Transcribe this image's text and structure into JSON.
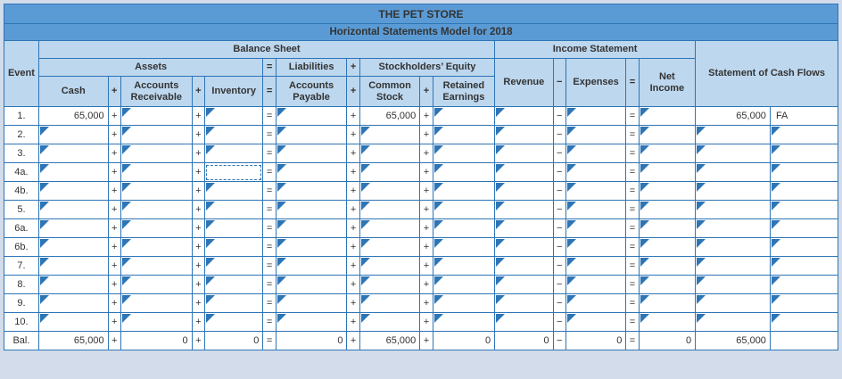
{
  "titles": {
    "company": "THE PET STORE",
    "model": "Horizontal Statements Model for 2018"
  },
  "header": {
    "event": "Event",
    "balance_sheet": "Balance Sheet",
    "income_statement": "Income Statement",
    "cash_flows": "Statement of Cash Flows",
    "assets": "Assets",
    "liabilities": "Liabilities",
    "stockholders_equity": "Stockholders’ Equity",
    "cash": "Cash",
    "accounts_receivable": "Accounts Receivable",
    "inventory": "Inventory",
    "accounts_payable": "Accounts Payable",
    "common_stock": "Common Stock",
    "retained_earnings": "Retained Earnings",
    "revenue": "Revenue",
    "expenses": "Expenses",
    "net_income": "Net Income",
    "op_plus": "+",
    "op_minus": "−",
    "op_equals": "="
  },
  "grid": {
    "columns": [
      {
        "type": "value",
        "key": "cash",
        "name": "cash"
      },
      {
        "type": "op",
        "label": "+"
      },
      {
        "type": "value",
        "key": "ar",
        "name": "accounts-receivable"
      },
      {
        "type": "op",
        "label": "+"
      },
      {
        "type": "value",
        "key": "inv",
        "name": "inventory"
      },
      {
        "type": "op",
        "label": "="
      },
      {
        "type": "value",
        "key": "ap",
        "name": "accounts-payable"
      },
      {
        "type": "op",
        "label": "+"
      },
      {
        "type": "value",
        "key": "cs",
        "name": "common-stock"
      },
      {
        "type": "op",
        "label": "+"
      },
      {
        "type": "value",
        "key": "re",
        "name": "retained-earnings"
      },
      {
        "type": "value",
        "key": "rev",
        "name": "revenue"
      },
      {
        "type": "op",
        "label": "−"
      },
      {
        "type": "value",
        "key": "exp",
        "name": "expenses"
      },
      {
        "type": "op",
        "label": "="
      },
      {
        "type": "value",
        "key": "ni",
        "name": "net-income"
      },
      {
        "type": "value",
        "key": "cf",
        "name": "cash-flow-amount"
      },
      {
        "type": "value",
        "key": "cf_code",
        "name": "cash-flow-code"
      }
    ],
    "rows": [
      {
        "event": "1.",
        "is_bal": false,
        "values": {
          "cash": "65,000",
          "cs": "65,000",
          "cf": "65,000",
          "cf_code": "FA"
        }
      },
      {
        "event": "2.",
        "is_bal": false,
        "values": {}
      },
      {
        "event": "3.",
        "is_bal": false,
        "values": {}
      },
      {
        "event": "4a.",
        "is_bal": false,
        "values": {}
      },
      {
        "event": "4b.",
        "is_bal": false,
        "values": {}
      },
      {
        "event": "5.",
        "is_bal": false,
        "values": {}
      },
      {
        "event": "6a.",
        "is_bal": false,
        "values": {}
      },
      {
        "event": "6b.",
        "is_bal": false,
        "values": {}
      },
      {
        "event": "7.",
        "is_bal": false,
        "values": {}
      },
      {
        "event": "8.",
        "is_bal": false,
        "values": {}
      },
      {
        "event": "9.",
        "is_bal": false,
        "values": {}
      },
      {
        "event": "10.",
        "is_bal": false,
        "values": {}
      },
      {
        "event": "Bal.",
        "is_bal": true,
        "values": {
          "cash": "65,000",
          "ar": "0",
          "inv": "0",
          "ap": "0",
          "cs": "65,000",
          "re": "0",
          "rev": "0",
          "exp": "0",
          "ni": "0",
          "cf": "65,000",
          "cf_code": ""
        }
      }
    ],
    "focused_cell": {
      "row": "4a.",
      "col": "inv"
    }
  },
  "colors": {
    "title_bar": "#5b9bd5",
    "header_bg": "#bdd7ee",
    "border": "#2e75b6",
    "page_bg": "#d2dcea",
    "marker": "#2e75b6"
  }
}
